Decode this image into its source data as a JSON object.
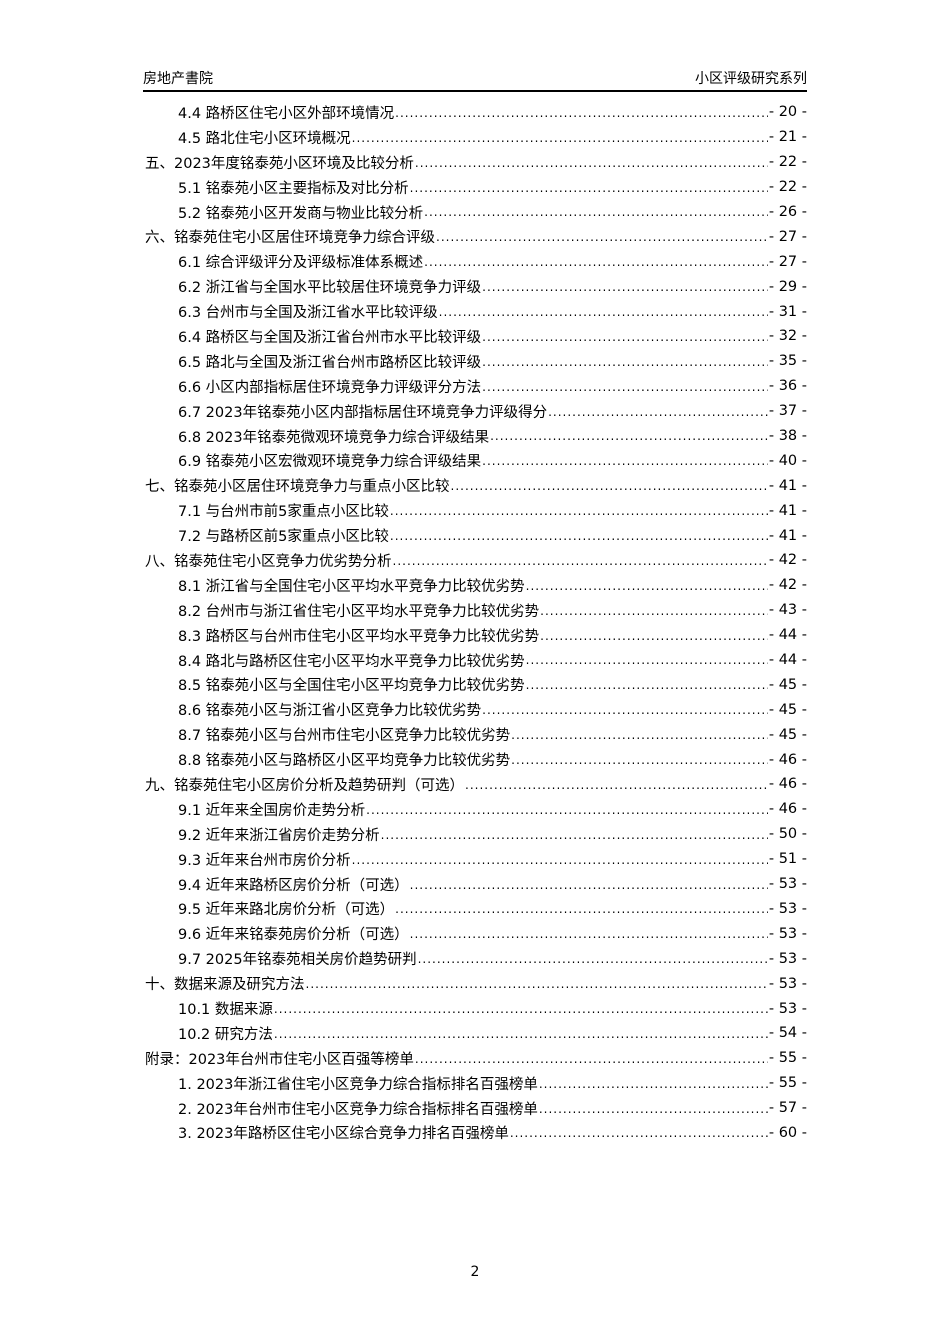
{
  "header": {
    "left": "房地产書院",
    "right": "小区评级研究系列"
  },
  "toc": [
    {
      "level": 2,
      "title": "4.4 路桥区住宅小区外部环境情况",
      "page": "- 20 -"
    },
    {
      "level": 2,
      "title": "4.5 路北住宅小区环境概况",
      "page": "- 21 -"
    },
    {
      "level": 1,
      "title": "五、2023年度铭泰苑小区环境及比较分析",
      "page": "- 22 -"
    },
    {
      "level": 2,
      "title": "5.1 铭泰苑小区主要指标及对比分析",
      "page": "- 22 -"
    },
    {
      "level": 2,
      "title": "5.2 铭泰苑小区开发商与物业比较分析",
      "page": "- 26 -"
    },
    {
      "level": 1,
      "title": "六、铭泰苑住宅小区居住环境竞争力综合评级",
      "page": "- 27 -"
    },
    {
      "level": 2,
      "title": "6.1 综合评级评分及评级标准体系概述",
      "page": "- 27 -"
    },
    {
      "level": 2,
      "title": "6.2 浙江省与全国水平比较居住环境竞争力评级",
      "page": "- 29 -"
    },
    {
      "level": 2,
      "title": "6.3 台州市与全国及浙江省水平比较评级",
      "page": "- 31 -"
    },
    {
      "level": 2,
      "title": "6.4 路桥区与全国及浙江省台州市水平比较评级",
      "page": "- 32 -"
    },
    {
      "level": 2,
      "title": "6.5 路北与全国及浙江省台州市路桥区比较评级",
      "page": "- 35 -"
    },
    {
      "level": 2,
      "title": "6.6 小区内部指标居住环境竞争力评级评分方法",
      "page": "- 36 -"
    },
    {
      "level": 2,
      "title": "6.7 2023年铭泰苑小区内部指标居住环境竞争力评级得分",
      "page": "- 37 -"
    },
    {
      "level": 2,
      "title": "6.8 2023年铭泰苑微观环境竞争力综合评级结果",
      "page": "- 38 -"
    },
    {
      "level": 2,
      "title": "6.9 铭泰苑小区宏微观环境竞争力综合评级结果",
      "page": "- 40 -"
    },
    {
      "level": 1,
      "title": "七、铭泰苑小区居住环境竞争力与重点小区比较",
      "page": "- 41 -"
    },
    {
      "level": 2,
      "title": "7.1 与台州市前5家重点小区比较",
      "page": "- 41 -"
    },
    {
      "level": 2,
      "title": "7.2 与路桥区前5家重点小区比较",
      "page": "- 41 -"
    },
    {
      "level": 1,
      "title": "八、铭泰苑住宅小区竞争力优劣势分析",
      "page": "- 42 -"
    },
    {
      "level": 2,
      "title": "8.1 浙江省与全国住宅小区平均水平竞争力比较优劣势",
      "page": "- 42 -"
    },
    {
      "level": 2,
      "title": "8.2 台州市与浙江省住宅小区平均水平竞争力比较优劣势",
      "page": "- 43 -"
    },
    {
      "level": 2,
      "title": "8.3 路桥区与台州市住宅小区平均水平竞争力比较优劣势",
      "page": "- 44 -"
    },
    {
      "level": 2,
      "title": "8.4 路北与路桥区住宅小区平均水平竞争力比较优劣势",
      "page": "- 44 -"
    },
    {
      "level": 2,
      "title": "8.5 铭泰苑小区与全国住宅小区平均竞争力比较优劣势",
      "page": "- 45 -"
    },
    {
      "level": 2,
      "title": "8.6 铭泰苑小区与浙江省小区竞争力比较优劣势",
      "page": "- 45 -"
    },
    {
      "level": 2,
      "title": "8.7 铭泰苑小区与台州市住宅小区竞争力比较优劣势",
      "page": "- 45 -"
    },
    {
      "level": 2,
      "title": "8.8 铭泰苑小区与路桥区小区平均竞争力比较优劣势",
      "page": "- 46 -"
    },
    {
      "level": 1,
      "title": "九、铭泰苑住宅小区房价分析及趋势研判（可选）",
      "page": "- 46 -"
    },
    {
      "level": 2,
      "title": "9.1 近年来全国房价走势分析",
      "page": "- 46 -"
    },
    {
      "level": 2,
      "title": "9.2 近年来浙江省房价走势分析",
      "page": "- 50 -"
    },
    {
      "level": 2,
      "title": "9.3 近年来台州市房价分析",
      "page": "- 51 -"
    },
    {
      "level": 2,
      "title": "9.4 近年来路桥区房价分析（可选）",
      "page": "- 53 -"
    },
    {
      "level": 2,
      "title": "9.5 近年来路北房价分析（可选）",
      "page": "- 53 -"
    },
    {
      "level": 2,
      "title": "9.6 近年来铭泰苑房价分析（可选）",
      "page": "- 53 -"
    },
    {
      "level": 2,
      "title": "9.7 2025年铭泰苑相关房价趋势研判",
      "page": "- 53 -"
    },
    {
      "level": 1,
      "title": "十、数据来源及研究方法",
      "page": "- 53 -"
    },
    {
      "level": 2,
      "title": "10.1 数据来源",
      "page": "- 53 -"
    },
    {
      "level": 2,
      "title": "10.2 研究方法",
      "page": "- 54 -"
    },
    {
      "level": 1,
      "title": "附录：2023年台州市住宅小区百强等榜单",
      "page": "- 55 -"
    },
    {
      "level": 2,
      "title": "1. 2023年浙江省住宅小区竞争力综合指标排名百强榜单",
      "page": "- 55 -"
    },
    {
      "level": 2,
      "title": "2. 2023年台州市住宅小区竞争力综合指标排名百强榜单",
      "page": "- 57 -"
    },
    {
      "level": 2,
      "title": "3. 2023年路桥区住宅小区综合竞争力排名百强榜单",
      "page": "- 60 -"
    }
  ],
  "footer": {
    "page_number": "2"
  }
}
